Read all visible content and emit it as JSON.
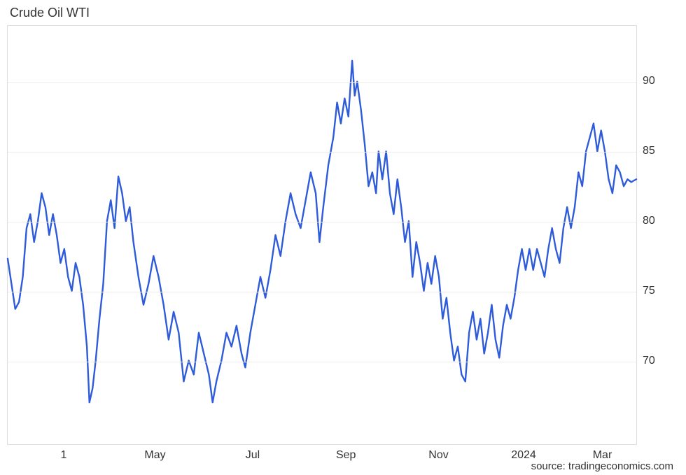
{
  "title": "Crude Oil WTI",
  "source": "source: tradingeconomics.com",
  "chart": {
    "type": "line",
    "line_color": "#2e5bd9",
    "line_width": 2.4,
    "background_color": "#ffffff",
    "border_color": "#dedede",
    "grid_color": "#ececec",
    "title_fontsize": 18,
    "title_color": "#333333",
    "axis_label_fontsize": 16,
    "axis_label_color": "#333333",
    "source_fontsize": 15,
    "source_color": "#333333",
    "ylim": [
      64,
      94
    ],
    "yticks": [
      70,
      75,
      80,
      85,
      90
    ],
    "xticks": [
      {
        "t": 0.09,
        "label": "1"
      },
      {
        "t": 0.235,
        "label": "May"
      },
      {
        "t": 0.39,
        "label": "Jul"
      },
      {
        "t": 0.538,
        "label": "Sep"
      },
      {
        "t": 0.685,
        "label": "Nov"
      },
      {
        "t": 0.82,
        "label": "2024"
      },
      {
        "t": 0.945,
        "label": "Mar"
      }
    ],
    "series": [
      [
        0.0,
        77.3
      ],
      [
        0.006,
        75.5
      ],
      [
        0.012,
        73.7
      ],
      [
        0.018,
        74.2
      ],
      [
        0.024,
        76.0
      ],
      [
        0.03,
        79.5
      ],
      [
        0.036,
        80.5
      ],
      [
        0.042,
        78.5
      ],
      [
        0.048,
        80.0
      ],
      [
        0.054,
        82.0
      ],
      [
        0.06,
        81.0
      ],
      [
        0.066,
        79.0
      ],
      [
        0.072,
        80.5
      ],
      [
        0.078,
        79.0
      ],
      [
        0.084,
        77.0
      ],
      [
        0.09,
        78.0
      ],
      [
        0.096,
        76.0
      ],
      [
        0.102,
        75.0
      ],
      [
        0.108,
        77.0
      ],
      [
        0.114,
        76.0
      ],
      [
        0.12,
        74.0
      ],
      [
        0.126,
        71.0
      ],
      [
        0.13,
        67.0
      ],
      [
        0.135,
        68.0
      ],
      [
        0.14,
        70.0
      ],
      [
        0.146,
        73.0
      ],
      [
        0.152,
        75.5
      ],
      [
        0.158,
        80.0
      ],
      [
        0.164,
        81.5
      ],
      [
        0.17,
        79.5
      ],
      [
        0.176,
        83.2
      ],
      [
        0.182,
        82.0
      ],
      [
        0.188,
        80.0
      ],
      [
        0.194,
        81.0
      ],
      [
        0.2,
        78.5
      ],
      [
        0.208,
        76.0
      ],
      [
        0.216,
        74.0
      ],
      [
        0.224,
        75.5
      ],
      [
        0.232,
        77.5
      ],
      [
        0.24,
        76.0
      ],
      [
        0.248,
        74.0
      ],
      [
        0.256,
        71.5
      ],
      [
        0.264,
        73.5
      ],
      [
        0.272,
        72.0
      ],
      [
        0.28,
        68.5
      ],
      [
        0.288,
        70.0
      ],
      [
        0.296,
        69.0
      ],
      [
        0.304,
        72.0
      ],
      [
        0.312,
        70.5
      ],
      [
        0.32,
        69.0
      ],
      [
        0.326,
        67.0
      ],
      [
        0.332,
        68.5
      ],
      [
        0.34,
        70.0
      ],
      [
        0.348,
        72.0
      ],
      [
        0.356,
        71.0
      ],
      [
        0.364,
        72.5
      ],
      [
        0.372,
        70.5
      ],
      [
        0.378,
        69.5
      ],
      [
        0.386,
        72.0
      ],
      [
        0.394,
        74.0
      ],
      [
        0.402,
        76.0
      ],
      [
        0.41,
        74.5
      ],
      [
        0.418,
        76.5
      ],
      [
        0.426,
        79.0
      ],
      [
        0.434,
        77.5
      ],
      [
        0.442,
        80.0
      ],
      [
        0.45,
        82.0
      ],
      [
        0.458,
        80.5
      ],
      [
        0.466,
        79.5
      ],
      [
        0.474,
        81.5
      ],
      [
        0.482,
        83.5
      ],
      [
        0.49,
        82.0
      ],
      [
        0.496,
        78.5
      ],
      [
        0.502,
        81.0
      ],
      [
        0.51,
        84.0
      ],
      [
        0.518,
        86.0
      ],
      [
        0.524,
        88.5
      ],
      [
        0.53,
        87.0
      ],
      [
        0.536,
        88.8
      ],
      [
        0.542,
        87.5
      ],
      [
        0.548,
        91.5
      ],
      [
        0.552,
        89.0
      ],
      [
        0.556,
        90.0
      ],
      [
        0.562,
        88.0
      ],
      [
        0.568,
        85.5
      ],
      [
        0.574,
        82.5
      ],
      [
        0.58,
        83.5
      ],
      [
        0.586,
        82.0
      ],
      [
        0.59,
        85.0
      ],
      [
        0.596,
        83.0
      ],
      [
        0.602,
        85.0
      ],
      [
        0.608,
        82.0
      ],
      [
        0.614,
        80.5
      ],
      [
        0.62,
        83.0
      ],
      [
        0.626,
        81.0
      ],
      [
        0.632,
        78.5
      ],
      [
        0.638,
        80.0
      ],
      [
        0.644,
        76.0
      ],
      [
        0.65,
        78.5
      ],
      [
        0.656,
        77.0
      ],
      [
        0.662,
        75.0
      ],
      [
        0.668,
        77.0
      ],
      [
        0.674,
        75.5
      ],
      [
        0.68,
        77.5
      ],
      [
        0.686,
        76.0
      ],
      [
        0.692,
        73.0
      ],
      [
        0.698,
        74.5
      ],
      [
        0.704,
        72.0
      ],
      [
        0.71,
        70.0
      ],
      [
        0.716,
        71.0
      ],
      [
        0.722,
        69.0
      ],
      [
        0.728,
        68.5
      ],
      [
        0.734,
        72.0
      ],
      [
        0.74,
        73.5
      ],
      [
        0.746,
        71.5
      ],
      [
        0.752,
        73.0
      ],
      [
        0.758,
        70.5
      ],
      [
        0.764,
        72.0
      ],
      [
        0.77,
        74.0
      ],
      [
        0.776,
        71.5
      ],
      [
        0.782,
        70.2
      ],
      [
        0.788,
        72.5
      ],
      [
        0.794,
        74.0
      ],
      [
        0.8,
        73.0
      ],
      [
        0.806,
        74.5
      ],
      [
        0.812,
        76.5
      ],
      [
        0.818,
        78.0
      ],
      [
        0.824,
        76.5
      ],
      [
        0.83,
        78.0
      ],
      [
        0.836,
        76.5
      ],
      [
        0.842,
        78.0
      ],
      [
        0.848,
        77.0
      ],
      [
        0.854,
        76.0
      ],
      [
        0.86,
        78.0
      ],
      [
        0.866,
        79.5
      ],
      [
        0.872,
        78.0
      ],
      [
        0.878,
        77.0
      ],
      [
        0.884,
        79.5
      ],
      [
        0.89,
        81.0
      ],
      [
        0.896,
        79.5
      ],
      [
        0.902,
        81.0
      ],
      [
        0.908,
        83.5
      ],
      [
        0.914,
        82.5
      ],
      [
        0.92,
        85.0
      ],
      [
        0.926,
        86.0
      ],
      [
        0.932,
        87.0
      ],
      [
        0.938,
        85.0
      ],
      [
        0.944,
        86.5
      ],
      [
        0.95,
        85.0
      ],
      [
        0.956,
        83.0
      ],
      [
        0.962,
        82.0
      ],
      [
        0.968,
        84.0
      ],
      [
        0.974,
        83.5
      ],
      [
        0.98,
        82.5
      ],
      [
        0.986,
        83.0
      ],
      [
        0.992,
        82.8
      ],
      [
        1.0,
        83.0
      ]
    ]
  }
}
